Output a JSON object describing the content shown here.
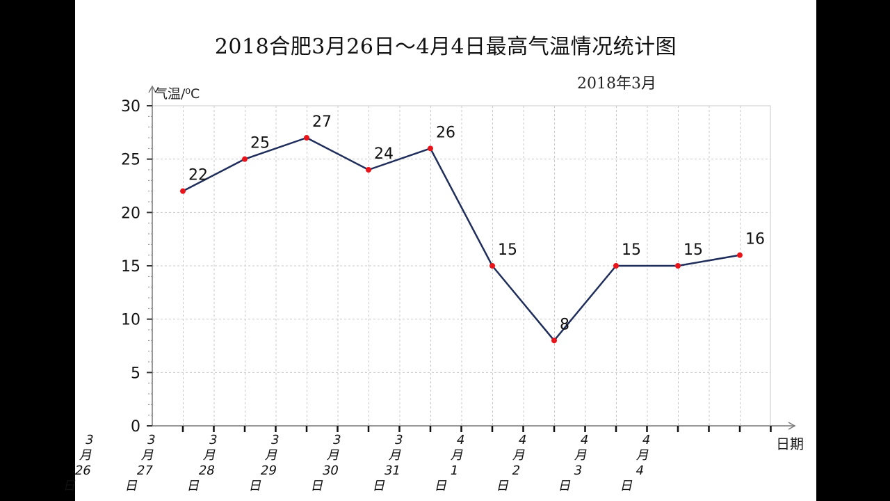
{
  "chart_data": {
    "type": "line",
    "title": "2018合肥3月26日～4月4日最高气温情况统计图",
    "subtitle": "2018年3月",
    "xlabel": "日期",
    "ylabel": "气温/⁰C",
    "ylim": [
      0,
      30
    ],
    "yticks": [
      "0",
      "5",
      "10",
      "15",
      "20",
      "25",
      "30"
    ],
    "categories": [
      [
        "3",
        "月",
        "26",
        "日"
      ],
      [
        "3",
        "月",
        "27",
        "日"
      ],
      [
        "3",
        "月",
        "28",
        "日"
      ],
      [
        "3",
        "月",
        "29",
        "日"
      ],
      [
        "3",
        "月",
        "30",
        "日"
      ],
      [
        "3",
        "月",
        "31",
        "日"
      ],
      [
        "4",
        "月",
        "1",
        "日"
      ],
      [
        "4",
        "月",
        "2",
        "日"
      ],
      [
        "4",
        "月",
        "3",
        "日"
      ],
      [
        "4",
        "月",
        "4",
        "日"
      ]
    ],
    "values": [
      22,
      25,
      27,
      24,
      26,
      15,
      8,
      15,
      15,
      16
    ],
    "data_labels": [
      "22",
      "25",
      "27",
      "24",
      "26",
      "15",
      "8",
      "15",
      "15",
      "16"
    ],
    "grid": true,
    "colors": {
      "line": "#1f2d5a",
      "marker": "#e8141a",
      "grid": "#c8c8c8"
    }
  }
}
